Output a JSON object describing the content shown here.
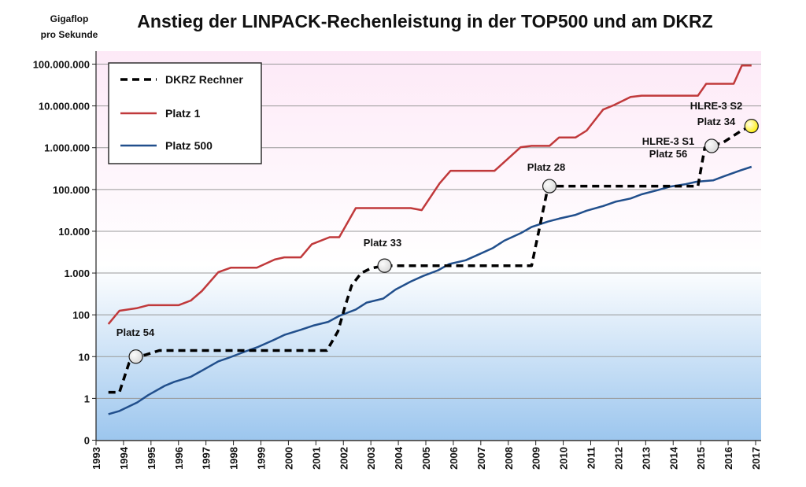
{
  "chart_data": {
    "type": "line",
    "title": "Anstieg der LINPACK-Rechenleistung in der TOP500 und am DKRZ",
    "ylabel_line1": "Gigaflop",
    "ylabel_line2": "pro Sekunde",
    "yscale": "log",
    "ylim": [
      0.1,
      100000000
    ],
    "xlim": [
      1993,
      2017
    ],
    "x_ticks": [
      "1993",
      "1994",
      "1995",
      "1996",
      "1997",
      "1998",
      "1999",
      "2000",
      "2001",
      "2002",
      "2003",
      "2004",
      "2005",
      "2006",
      "2007",
      "2008",
      "2009",
      "2010",
      "2011",
      "2012",
      "2013",
      "2014",
      "2015",
      "2016",
      "2017"
    ],
    "y_ticks": [
      {
        "value": 0.1,
        "label": "0"
      },
      {
        "value": 1,
        "label": "1"
      },
      {
        "value": 10,
        "label": "10"
      },
      {
        "value": 100,
        "label": "100"
      },
      {
        "value": 1000,
        "label": "1.000"
      },
      {
        "value": 10000,
        "label": "10.000"
      },
      {
        "value": 100000,
        "label": "100.000"
      },
      {
        "value": 1000000,
        "label": "1.000.000"
      },
      {
        "value": 10000000,
        "label": "10.000.000"
      },
      {
        "value": 100000000,
        "label": "100.000.000"
      }
    ],
    "grid": "horizontal",
    "legend_position": "top-left",
    "series": [
      {
        "name": "DKRZ Rechner",
        "color": "#000000",
        "style": "dashed",
        "points": [
          [
            1993.45,
            1.4
          ],
          [
            1993.85,
            1.4
          ],
          [
            1994.2,
            7
          ],
          [
            1994.45,
            10
          ],
          [
            1994.8,
            11
          ],
          [
            1995.3,
            14
          ],
          [
            2001.4,
            14
          ],
          [
            2001.8,
            40
          ],
          [
            2002.05,
            150
          ],
          [
            2002.3,
            500
          ],
          [
            2002.65,
            1000
          ],
          [
            2003.0,
            1300
          ],
          [
            2003.5,
            1500
          ],
          [
            2008.85,
            1500
          ],
          [
            2009.45,
            120000
          ],
          [
            2014.9,
            120000
          ],
          [
            2015.15,
            1000000
          ],
          [
            2015.4,
            1200000
          ],
          [
            2015.75,
            1250000
          ],
          [
            2016.5,
            2600000
          ],
          [
            2016.85,
            3300000
          ]
        ]
      },
      {
        "name": "Platz 1",
        "color": "#c0393b",
        "style": "solid",
        "points": [
          [
            1993.45,
            60
          ],
          [
            1993.85,
            125
          ],
          [
            1994.5,
            145
          ],
          [
            1994.9,
            170
          ],
          [
            1996.0,
            170
          ],
          [
            1996.45,
            220
          ],
          [
            1996.85,
            370
          ],
          [
            1997.45,
            1050
          ],
          [
            1997.9,
            1340
          ],
          [
            1998.85,
            1340
          ],
          [
            1999.5,
            2100
          ],
          [
            1999.85,
            2380
          ],
          [
            2000.45,
            2380
          ],
          [
            2000.85,
            4900
          ],
          [
            2001.5,
            7200
          ],
          [
            2001.85,
            7200
          ],
          [
            2002.45,
            35900
          ],
          [
            2004.45,
            35900
          ],
          [
            2004.85,
            32000
          ],
          [
            2005.5,
            140000
          ],
          [
            2005.9,
            280000
          ],
          [
            2007.5,
            280000
          ],
          [
            2008.45,
            1026000
          ],
          [
            2008.85,
            1105000
          ],
          [
            2009.5,
            1105000
          ],
          [
            2009.85,
            1759000
          ],
          [
            2010.45,
            1759000
          ],
          [
            2010.85,
            2566000
          ],
          [
            2011.45,
            8162000
          ],
          [
            2011.85,
            10510000
          ],
          [
            2012.45,
            16324000
          ],
          [
            2012.85,
            17590000
          ],
          [
            2014.9,
            17590000
          ],
          [
            2015.2,
            33860000
          ],
          [
            2016.2,
            33860000
          ],
          [
            2016.5,
            93000000
          ],
          [
            2016.85,
            93000000
          ]
        ]
      },
      {
        "name": "Platz 500",
        "color": "#214f8c",
        "style": "solid",
        "points": [
          [
            1993.45,
            0.42
          ],
          [
            1993.85,
            0.5
          ],
          [
            1994.5,
            0.8
          ],
          [
            1994.9,
            1.2
          ],
          [
            1995.5,
            2.0
          ],
          [
            1995.85,
            2.5
          ],
          [
            1996.45,
            3.3
          ],
          [
            1996.85,
            4.6
          ],
          [
            1997.45,
            7.7
          ],
          [
            1997.85,
            9.5
          ],
          [
            1998.45,
            13.4
          ],
          [
            1998.9,
            17.1
          ],
          [
            1999.45,
            24.7
          ],
          [
            1999.85,
            33.1
          ],
          [
            2000.45,
            43.8
          ],
          [
            2000.9,
            55.1
          ],
          [
            2001.45,
            67.8
          ],
          [
            2001.85,
            94.3
          ],
          [
            2002.45,
            134
          ],
          [
            2002.85,
            196
          ],
          [
            2003.45,
            245
          ],
          [
            2003.9,
            403
          ],
          [
            2004.45,
            624
          ],
          [
            2004.9,
            851
          ],
          [
            2005.45,
            1166
          ],
          [
            2005.85,
            1645
          ],
          [
            2006.45,
            2026
          ],
          [
            2006.9,
            2737
          ],
          [
            2007.45,
            4005
          ],
          [
            2007.85,
            5929
          ],
          [
            2008.45,
            9000
          ],
          [
            2008.85,
            12640
          ],
          [
            2009.45,
            17100
          ],
          [
            2009.85,
            20050
          ],
          [
            2010.45,
            24670
          ],
          [
            2010.85,
            31120
          ],
          [
            2011.45,
            40190
          ],
          [
            2011.9,
            50940
          ],
          [
            2012.45,
            60820
          ],
          [
            2012.85,
            76500
          ],
          [
            2013.45,
            96620
          ],
          [
            2013.9,
            117800
          ],
          [
            2014.45,
            133700
          ],
          [
            2014.85,
            153400
          ],
          [
            2015.45,
            164900
          ],
          [
            2015.85,
            206300
          ],
          [
            2016.45,
            286000
          ],
          [
            2016.85,
            349300
          ]
        ]
      }
    ],
    "annotations": [
      {
        "lines": [
          "Platz 54"
        ],
        "x": 1994.45,
        "y": 10,
        "marker": "#d8d8d8"
      },
      {
        "lines": [
          "Platz 33"
        ],
        "x": 2003.5,
        "y": 1500,
        "marker": "#d8d8d8"
      },
      {
        "lines": [
          "Platz 28"
        ],
        "x": 2009.5,
        "y": 120000,
        "marker": "#d8d8d8"
      },
      {
        "lines": [
          "HLRE-3  S1",
          "Platz 56"
        ],
        "x": 2015.4,
        "y": 1100000,
        "marker": "#d8d8d8"
      },
      {
        "lines": [
          "HLRE-3  S2",
          "Platz 34"
        ],
        "x": 2016.85,
        "y": 3300000,
        "marker": "#ffee00"
      }
    ]
  }
}
